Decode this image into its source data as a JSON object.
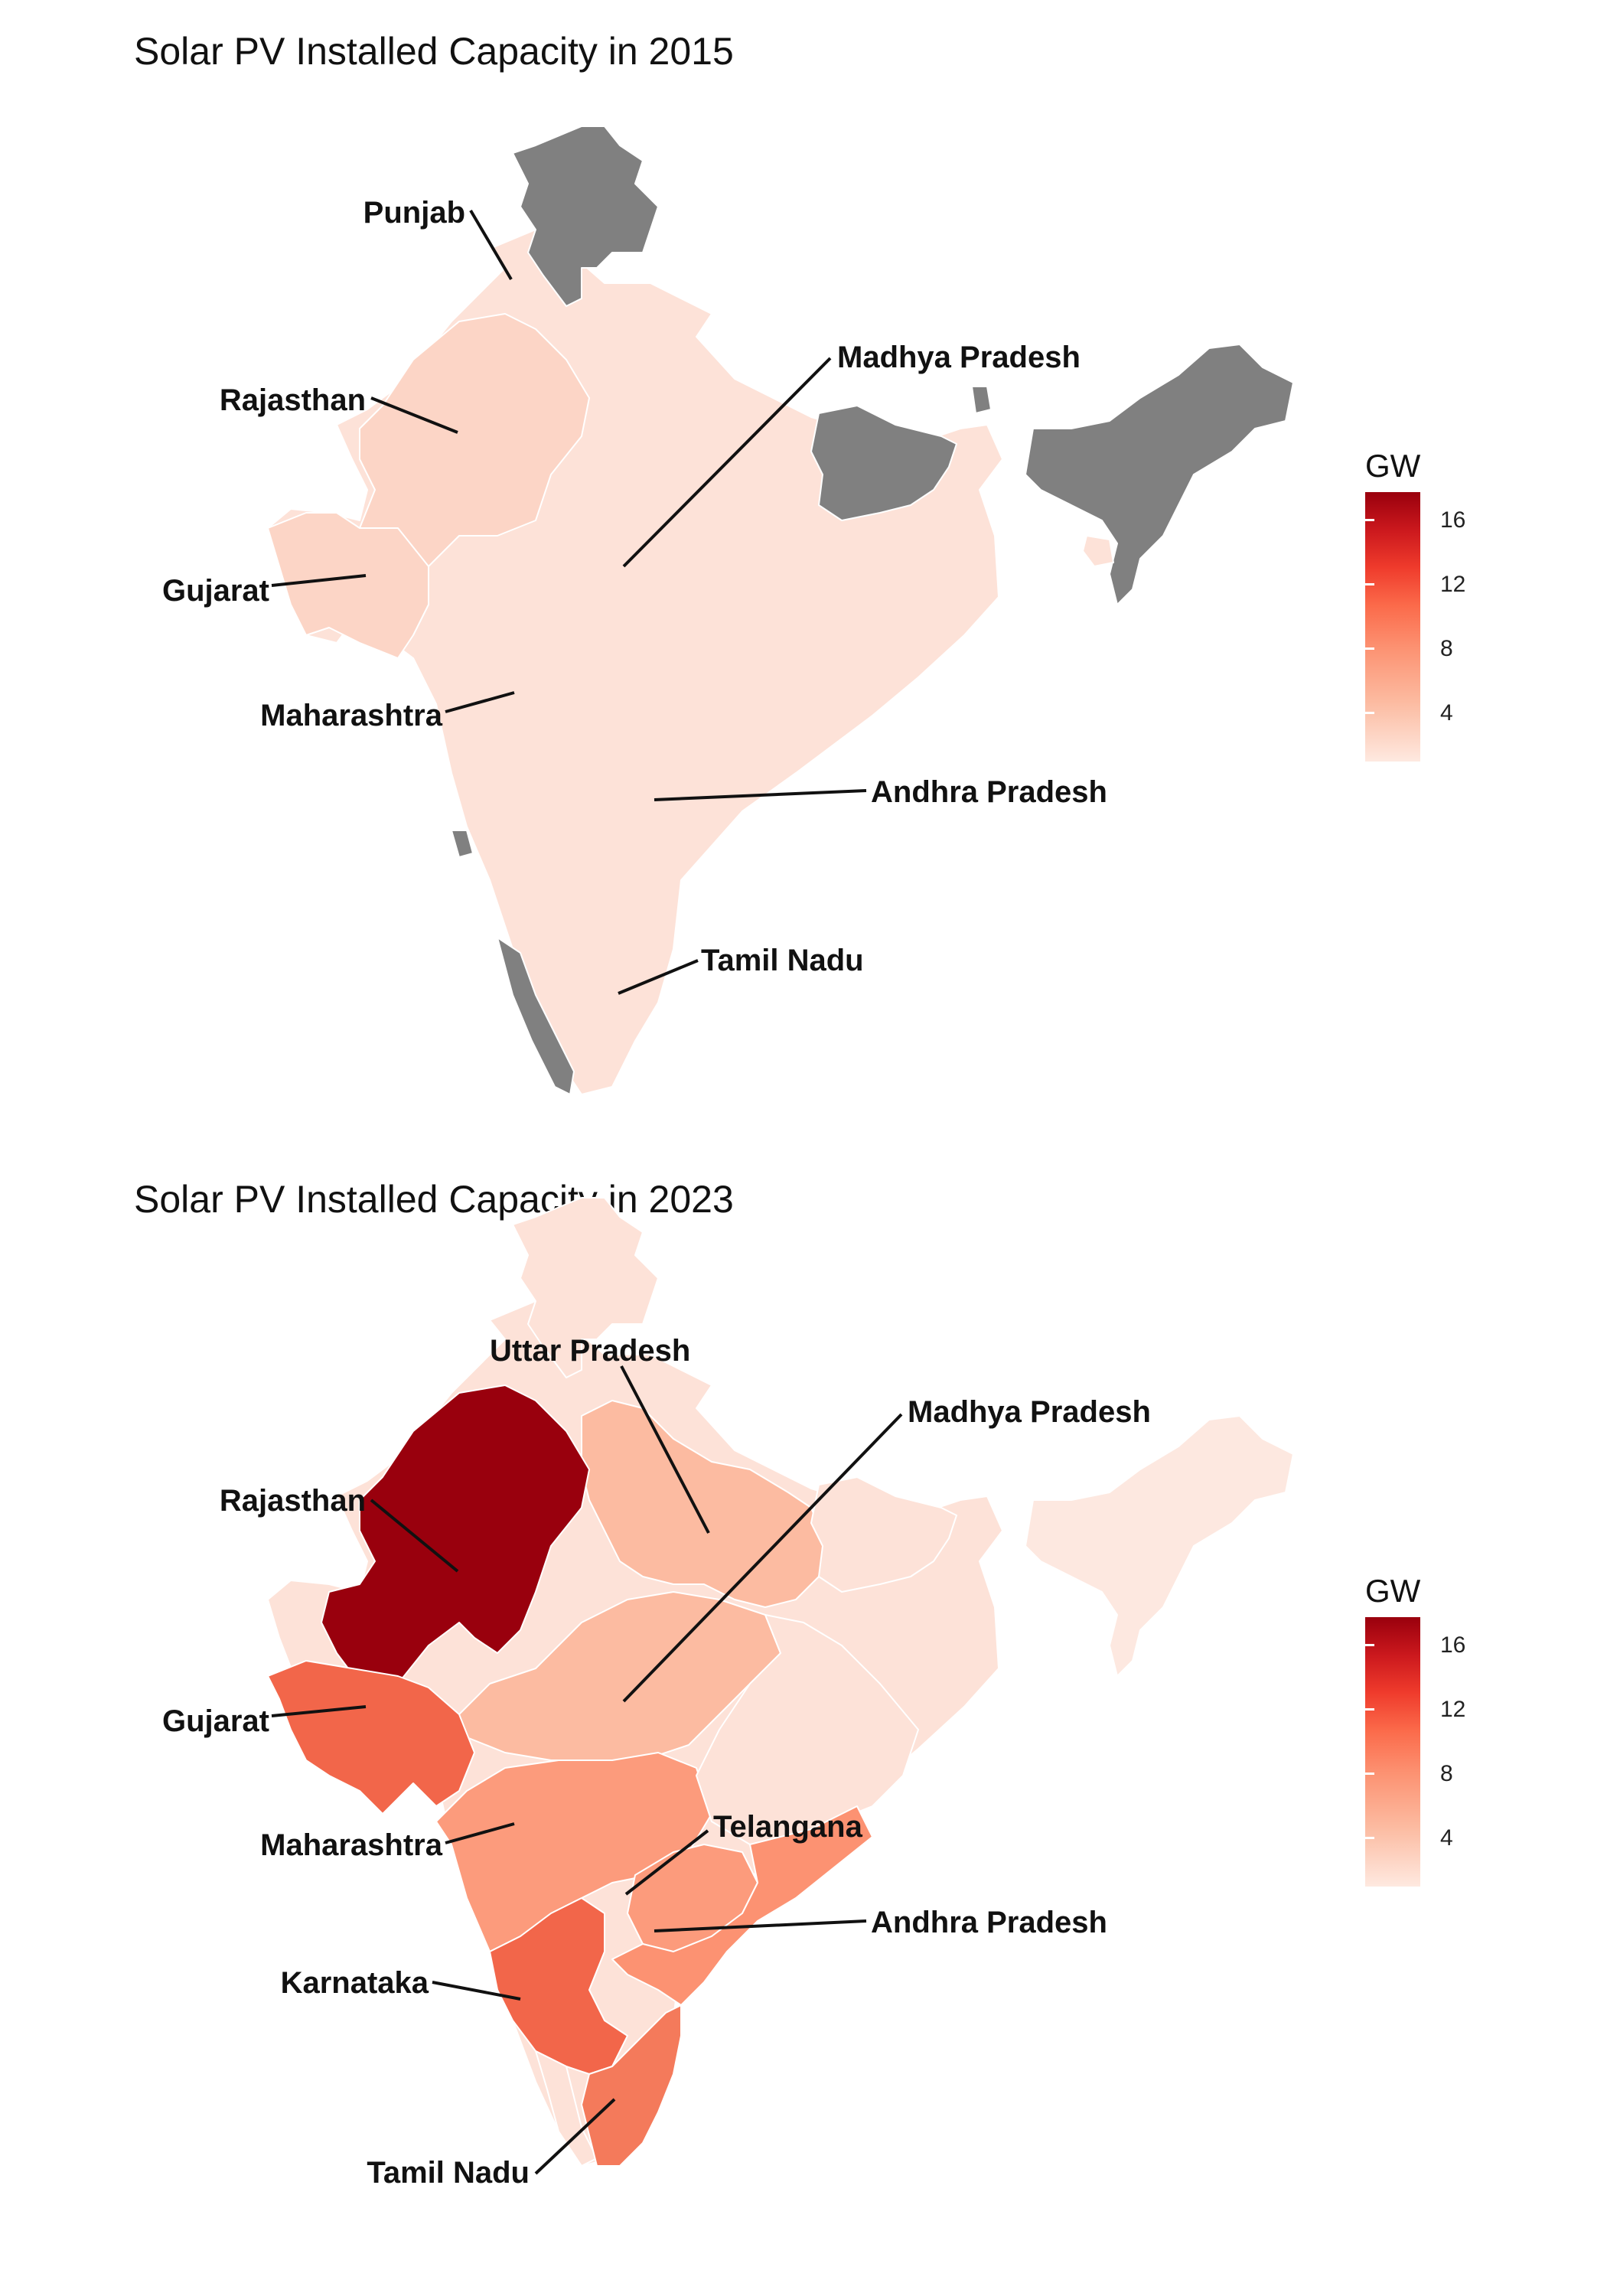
{
  "panels": [
    {
      "title": "Solar PV Installed Capacity in 2015",
      "labels": {
        "punjab": "Punjab",
        "rajasthan": "Rajasthan",
        "gujarat": "Gujarat",
        "maharashtra": "Maharashtra",
        "madhya_pradesh": "Madhya Pradesh",
        "andhra_pradesh": "Andhra Pradesh",
        "tamil_nadu": "Tamil Nadu"
      },
      "legend": {
        "title": "GW",
        "ticks": [
          "16",
          "12",
          "8",
          "4"
        ]
      }
    },
    {
      "title": "Solar PV Installed Capacity in 2023",
      "labels": {
        "uttar_pradesh": "Uttar Pradesh",
        "madhya_pradesh": "Madhya Pradesh",
        "rajasthan": "Rajasthan",
        "gujarat": "Gujarat",
        "maharashtra": "Maharashtra",
        "telangana": "Telangana",
        "andhra_pradesh": "Andhra Pradesh",
        "karnataka": "Karnataka",
        "tamil_nadu": "Tamil Nadu"
      },
      "legend": {
        "title": "GW",
        "ticks": [
          "16",
          "12",
          "8",
          "4"
        ]
      }
    }
  ],
  "colors": {
    "no_data": "#808080",
    "scale_low": "#fee9e0",
    "scale_high": "#99000d"
  }
}
